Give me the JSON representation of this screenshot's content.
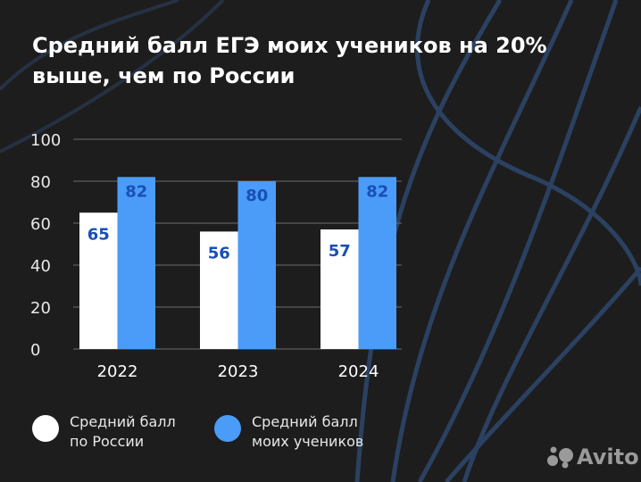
{
  "title": "Средний балл ЕГЭ моих учеников на 20% выше, чем по России",
  "chart_data": {
    "type": "bar",
    "categories": [
      "2022",
      "2023",
      "2024"
    ],
    "series": [
      {
        "name": "Средний балл по России",
        "values": [
          65,
          56,
          57
        ],
        "color": "#ffffff"
      },
      {
        "name": "Средний балл моих учеников",
        "values": [
          82,
          80,
          82
        ],
        "color": "#4a9cf8"
      }
    ],
    "ylim": [
      0,
      100
    ],
    "yticks": [
      0,
      20,
      40,
      60,
      80,
      100
    ],
    "grid": true,
    "data_label_color": "#1a4fb5",
    "legend_position": "bottom"
  },
  "legend": [
    {
      "label": "Средний балл\nпо России",
      "color": "#ffffff"
    },
    {
      "label": "Средний балл\nмоих учеников",
      "color": "#4a9cf8"
    }
  ],
  "logo": {
    "text": "Avito"
  }
}
